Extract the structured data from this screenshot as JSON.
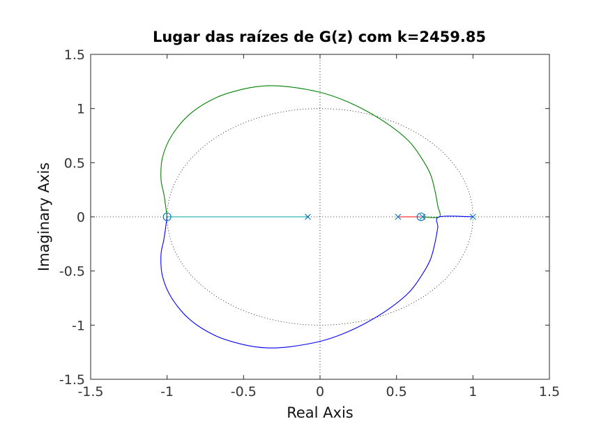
{
  "chart_data": {
    "type": "line",
    "title": "Lugar das raízes de G(z) com k=2459.85",
    "xlabel": "Real Axis",
    "ylabel": "Imaginary Axis",
    "xlim": [
      -1.5,
      1.5
    ],
    "ylim": [
      -1.5,
      1.5
    ],
    "xticks": [
      -1.5,
      -1,
      -0.5,
      0,
      0.5,
      1,
      1.5
    ],
    "xtick_labels": [
      "-1.5",
      "-1",
      "-0.5",
      "0",
      "0.5",
      "1",
      "1.5"
    ],
    "yticks": [
      -1.5,
      -1,
      -0.5,
      0,
      0.5,
      1,
      1.5
    ],
    "ytick_labels": [
      "-1.5",
      "-1",
      "-0.5",
      "0",
      "0.5",
      "1",
      "1.5"
    ],
    "grid": false,
    "unit_circle": {
      "radius": 1,
      "style": "dotted",
      "color": "#000000"
    },
    "zero_lines": {
      "x": 0,
      "y": 0,
      "style": "dotted",
      "color": "#000000"
    },
    "poles": [
      {
        "re": -0.08,
        "im": 0
      },
      {
        "re": 0.51,
        "im": 0
      },
      {
        "re": 0.67,
        "im": 0
      },
      {
        "re": 1.0,
        "im": 0
      }
    ],
    "zeros": [
      {
        "re": -1.0,
        "im": 0
      },
      {
        "re": 0.66,
        "im": 0
      }
    ],
    "marker_color": "#0072bd",
    "series": [
      {
        "color": "#008000",
        "points": [
          [
            0.67,
            0
          ],
          [
            0.78,
            0
          ],
          [
            0.77,
            0.1
          ],
          [
            0.75,
            0.25
          ],
          [
            0.72,
            0.4
          ],
          [
            0.66,
            0.55
          ],
          [
            0.58,
            0.7
          ],
          [
            0.45,
            0.85
          ],
          [
            0.3,
            0.98
          ],
          [
            0.15,
            1.08
          ],
          [
            0,
            1.15
          ],
          [
            -0.2,
            1.2
          ],
          [
            -0.35,
            1.21
          ],
          [
            -0.5,
            1.18
          ],
          [
            -0.68,
            1.1
          ],
          [
            -0.85,
            0.95
          ],
          [
            -0.97,
            0.75
          ],
          [
            -1.03,
            0.55
          ],
          [
            -1.04,
            0.35
          ],
          [
            -1.02,
            0.2
          ],
          [
            -1.0,
            0
          ]
        ]
      },
      {
        "color": "#0000ff",
        "points": [
          [
            1.0,
            0
          ],
          [
            0.78,
            0
          ],
          [
            0.77,
            -0.1
          ],
          [
            0.75,
            -0.25
          ],
          [
            0.72,
            -0.4
          ],
          [
            0.66,
            -0.55
          ],
          [
            0.58,
            -0.7
          ],
          [
            0.45,
            -0.85
          ],
          [
            0.3,
            -0.98
          ],
          [
            0.15,
            -1.08
          ],
          [
            0,
            -1.15
          ],
          [
            -0.2,
            -1.2
          ],
          [
            -0.35,
            -1.21
          ],
          [
            -0.5,
            -1.18
          ],
          [
            -0.68,
            -1.1
          ],
          [
            -0.85,
            -0.95
          ],
          [
            -0.97,
            -0.75
          ],
          [
            -1.03,
            -0.55
          ],
          [
            -1.04,
            -0.35
          ],
          [
            -1.02,
            -0.2
          ],
          [
            -1.0,
            0
          ]
        ]
      },
      {
        "color": "#ff0000",
        "points": [
          [
            0.51,
            0
          ],
          [
            0.66,
            0
          ]
        ]
      },
      {
        "color": "#00a0a0",
        "points": [
          [
            -0.08,
            0
          ],
          [
            -1.0,
            0
          ]
        ]
      }
    ]
  }
}
